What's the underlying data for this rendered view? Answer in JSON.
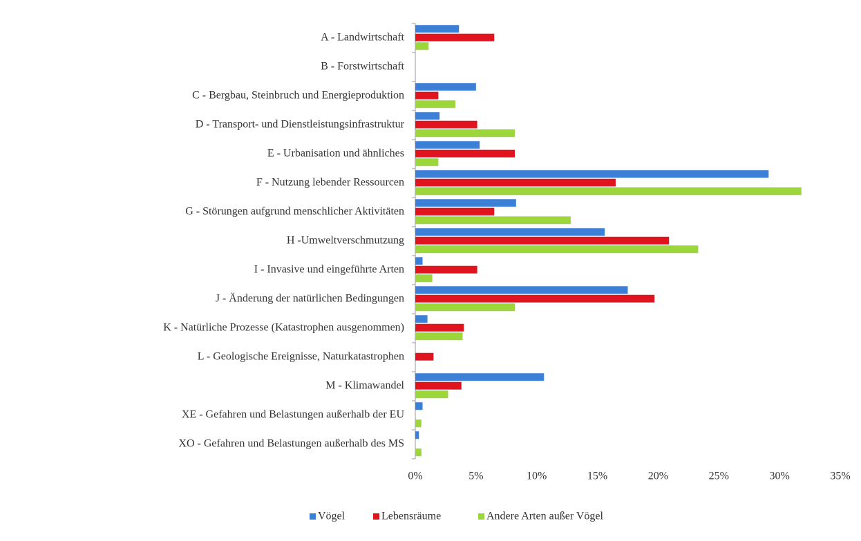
{
  "chart_data": {
    "type": "bar",
    "orientation": "horizontal",
    "categories": [
      "A - Landwirtschaft",
      "B - Forstwirtschaft",
      "C - Bergbau, Steinbruch und Energieproduktion",
      "D - Transport- und Dienstleistungsinfrastruktur",
      "E - Urbanisation und ähnliches",
      "F - Nutzung lebender Ressourcen",
      "G - Störungen aufgrund menschlicher Aktivitäten",
      "H -Umweltverschmutzung",
      "I - Invasive und eingeführte Arten",
      "J - Änderung der natürlichen Bedingungen",
      "K - Natürliche Prozesse (Katastrophen ausgenommen)",
      "L - Geologische Ereignisse, Naturkatastrophen",
      "M - Klimawandel",
      "XE - Gefahren und Belastungen außerhalb der EU",
      "XO - Gefahren und Belastungen außerhalb des MS"
    ],
    "series": [
      {
        "name": "Vögel",
        "color": "#3b7fd6",
        "values": [
          3.6,
          0,
          5.0,
          2.0,
          5.3,
          29.1,
          8.3,
          15.6,
          0.6,
          17.5,
          1.0,
          0,
          10.6,
          0.6,
          0.3
        ]
      },
      {
        "name": "Lebensräume",
        "color": "#e0141e",
        "values": [
          6.5,
          0,
          1.9,
          5.1,
          8.2,
          16.5,
          6.5,
          20.9,
          5.1,
          19.7,
          4.0,
          1.5,
          3.8,
          0,
          0
        ]
      },
      {
        "name": "Andere Arten außer Vögel",
        "color": "#9cd63b",
        "values": [
          1.1,
          0,
          3.3,
          8.2,
          1.9,
          31.8,
          12.8,
          23.3,
          1.4,
          8.2,
          3.9,
          0,
          2.7,
          0.5,
          0.5
        ]
      }
    ],
    "xlim": [
      0,
      35
    ],
    "xticks": [
      {
        "value": 0,
        "label": "0%"
      },
      {
        "value": 5,
        "label": "5%"
      },
      {
        "value": 10,
        "label": "10%"
      },
      {
        "value": 15,
        "label": "15%"
      },
      {
        "value": 20,
        "label": "20%"
      },
      {
        "value": 25,
        "label": "25%"
      },
      {
        "value": 30,
        "label": "30%"
      },
      {
        "value": 35,
        "label": "35%"
      }
    ],
    "legend": "bottom"
  }
}
